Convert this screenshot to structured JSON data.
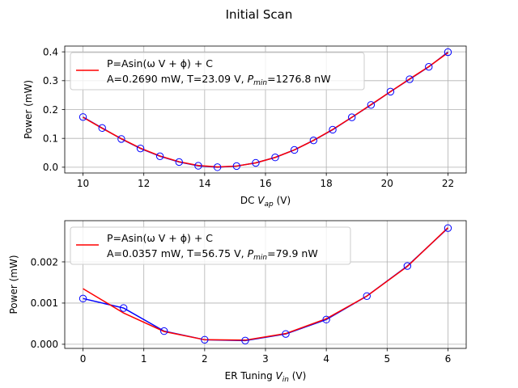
{
  "figure": {
    "title": "Initial Scan"
  },
  "colors": {
    "data": "#0000ff",
    "fit": "#ff0000",
    "grid": "#b0b0b0"
  },
  "chart_data": [
    {
      "type": "line",
      "title": "",
      "xlabel": {
        "main": "DC ",
        "var": "V",
        "sub": "ap",
        "unit": " (V)"
      },
      "ylabel": "Power (mW)",
      "xlim": [
        9.4,
        22.6
      ],
      "ylim": [
        -0.02,
        0.42
      ],
      "xticks": [
        10,
        12,
        14,
        16,
        18,
        20,
        22
      ],
      "xtick_labels": [
        "10",
        "12",
        "14",
        "16",
        "18",
        "20",
        "22"
      ],
      "yticks": [
        0.0,
        0.1,
        0.2,
        0.3,
        0.4
      ],
      "ytick_labels": [
        "0.0",
        "0.1",
        "0.2",
        "0.3",
        "0.4"
      ],
      "grid": true,
      "legend": {
        "placement": "upper-left",
        "fit_label": "P=Asin(ω V + ϕ) + C",
        "params_prefix": " A=0.2690 mW, T=23.09 V, ",
        "pmin_var": "P",
        "pmin_sub": "min",
        "params_suffix": "=1276.8 nW"
      },
      "series": [
        {
          "role": "data",
          "style": "blue line with open circle markers",
          "x": [
            10.0,
            10.63,
            11.26,
            11.89,
            12.53,
            13.16,
            13.79,
            14.42,
            15.05,
            15.68,
            16.32,
            16.95,
            17.58,
            18.21,
            18.84,
            19.47,
            20.11,
            20.74,
            21.37,
            22.0
          ],
          "y": [
            0.174,
            0.136,
            0.098,
            0.065,
            0.038,
            0.018,
            0.005,
            0.0,
            0.004,
            0.015,
            0.034,
            0.06,
            0.093,
            0.13,
            0.173,
            0.216,
            0.262,
            0.305,
            0.348,
            0.399
          ]
        },
        {
          "role": "fit",
          "style": "red line",
          "x": [
            10.0,
            10.63,
            11.26,
            11.89,
            12.53,
            13.16,
            13.79,
            14.42,
            15.05,
            15.68,
            16.32,
            16.95,
            17.58,
            18.21,
            18.84,
            19.47,
            20.11,
            20.74,
            21.37,
            22.0
          ],
          "y": [
            0.173,
            0.135,
            0.099,
            0.066,
            0.039,
            0.019,
            0.006,
            0.001,
            0.004,
            0.015,
            0.034,
            0.06,
            0.093,
            0.131,
            0.173,
            0.217,
            0.262,
            0.306,
            0.349,
            0.397
          ]
        }
      ]
    },
    {
      "type": "line",
      "title": "",
      "xlabel": {
        "main": "ER Tuning ",
        "var": "V",
        "sub": "in",
        "unit": " (V)"
      },
      "ylabel": "Power (mW)",
      "xlim": [
        -0.3,
        6.3
      ],
      "ylim": [
        -0.0001,
        0.003
      ],
      "xticks": [
        0,
        1,
        2,
        3,
        4,
        5,
        6
      ],
      "xtick_labels": [
        "0",
        "1",
        "2",
        "3",
        "4",
        "5",
        "6"
      ],
      "yticks": [
        0.0,
        0.001,
        0.002
      ],
      "ytick_labels": [
        "0.000",
        "0.001",
        "0.002"
      ],
      "grid": true,
      "legend": {
        "placement": "upper-left",
        "fit_label": "P=Asin(ω V + ϕ) + C",
        "params_prefix": " A=0.0357 mW, T=56.75 V, ",
        "pmin_var": "P",
        "pmin_sub": "min",
        "params_suffix": "=79.9 nW"
      },
      "series": [
        {
          "role": "data",
          "style": "blue line with open circle markers",
          "x": [
            0.0,
            0.667,
            1.333,
            2.0,
            2.667,
            3.333,
            4.0,
            4.667,
            5.333,
            6.0
          ],
          "y": [
            0.00111,
            0.00088,
            0.00032,
            0.00011,
            9e-05,
            0.00025,
            0.0006,
            0.00117,
            0.0019,
            0.00282
          ]
        },
        {
          "role": "fit",
          "style": "red line",
          "x": [
            0.0,
            0.667,
            1.333,
            2.0,
            2.667,
            3.333,
            4.0,
            4.667,
            5.333,
            6.0
          ],
          "y": [
            0.00135,
            0.00076,
            0.00031,
            0.00011,
            0.0001,
            0.00026,
            0.00062,
            0.00117,
            0.00189,
            0.00283
          ]
        }
      ]
    }
  ]
}
